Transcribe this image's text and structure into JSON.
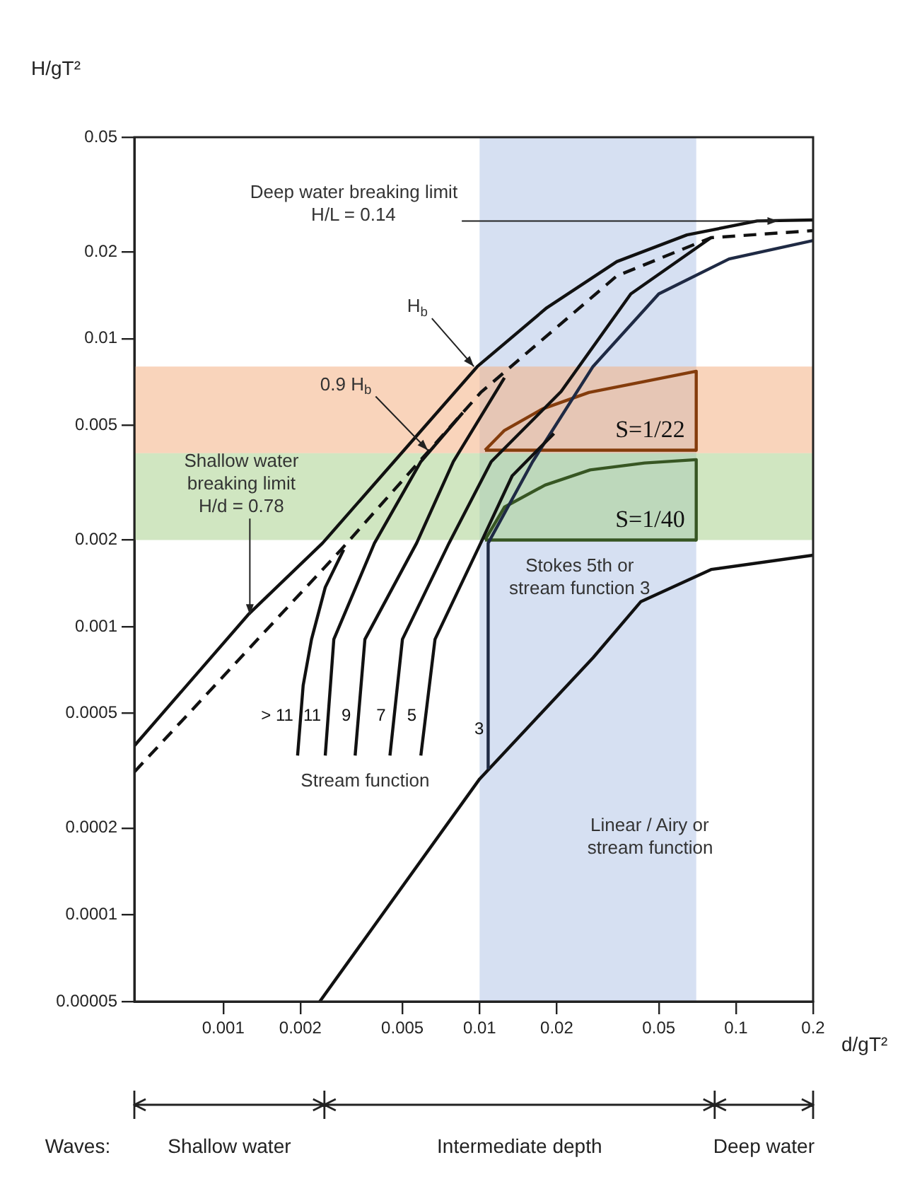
{
  "chart_data": {
    "type": "line",
    "xlabel": "d/gT²",
    "ylabel": "H/gT²",
    "log": "xy",
    "xlim": [
      0.00045,
      0.2
    ],
    "ylim": [
      5e-05,
      0.05
    ],
    "xticks": [
      0.001,
      0.002,
      0.005,
      0.01,
      0.02,
      0.05,
      0.1,
      0.2
    ],
    "yticks": [
      {
        "value": 5e-05,
        "label": "0.00005"
      },
      0.0001,
      0.0002,
      0.0005,
      0.001,
      0.002,
      0.005,
      0.01,
      0.02,
      0.05
    ],
    "grid": false,
    "legend": false,
    "marker": "none",
    "series": [
      {
        "type": "line",
        "color": "#111111",
        "x": [
          0.00045,
          0.00125,
          0.00244,
          0.0098,
          0.0183,
          0.0343,
          0.0644,
          0.121,
          0.2
        ],
        "values": [
          0.000386,
          0.0011,
          0.00195,
          0.008,
          0.0128,
          0.0185,
          0.0229,
          0.0256,
          0.0258
        ]
      },
      {
        "type": "line",
        "color": "#111111",
        "line_style": "dashed",
        "x": [
          0.00045,
          0.00288,
          0.0101,
          0.0343,
          0.08,
          0.2
        ],
        "values": [
          0.000313,
          0.00185,
          0.0065,
          0.0165,
          0.0224,
          0.0237
        ]
      },
      {
        "type": "line",
        "name": "> 11",
        "color": "#111111",
        "x": [
          0.00195,
          0.00205,
          0.00221,
          0.0025,
          0.00295
        ],
        "values": [
          0.000357,
          0.000625,
          0.000904,
          0.00137,
          0.00185
        ]
      },
      {
        "type": "line",
        "name": "11",
        "color": "#111111",
        "x": [
          0.0025,
          0.0027,
          0.00389,
          0.0059,
          0.0086
        ],
        "values": [
          0.000357,
          0.000904,
          0.00195,
          0.00374,
          0.00553
        ]
      },
      {
        "type": "line",
        "name": "9",
        "color": "#111111",
        "x": [
          0.00327,
          0.00357,
          0.00568,
          0.0079,
          0.0125
        ],
        "values": [
          0.000357,
          0.000904,
          0.00195,
          0.00374,
          0.00731
        ]
      },
      {
        "type": "line",
        "name": "7",
        "color": "#111111",
        "x": [
          0.00447,
          0.005,
          0.0076,
          0.0111,
          0.0208,
          0.0389,
          0.08
        ],
        "values": [
          0.000357,
          0.000904,
          0.00195,
          0.00374,
          0.00655,
          0.0143,
          0.0224
        ]
      },
      {
        "type": "line",
        "name": "5",
        "color": "#111111",
        "x": [
          0.0059,
          0.0067,
          0.0101,
          0.0134,
          0.0195
        ],
        "values": [
          0.000357,
          0.000904,
          0.00195,
          0.00334,
          0.00468
        ]
      },
      {
        "type": "line",
        "name": "3",
        "color": "#1f2a44",
        "x": [
          0.0108,
          0.0108,
          0.0161,
          0.0277,
          0.05,
          0.094,
          0.2
        ],
        "values": [
          0.00032,
          0.00195,
          0.00374,
          0.008,
          0.0143,
          0.0189,
          0.0219
        ]
      },
      {
        "type": "line",
        "color": "#111111",
        "x": [
          0.00238,
          0.01,
          0.0277,
          0.0425,
          0.08,
          0.2
        ],
        "values": [
          5e-05,
          0.000296,
          0.00078,
          0.00122,
          0.00158,
          0.00177
        ]
      },
      {
        "type": "line",
        "name": "S=1/22",
        "color": "#843c0c",
        "x": [
          0.0105,
          0.0125,
          0.0176,
          0.0267,
          0.044,
          0.07,
          0.07
        ],
        "values": [
          0.0041,
          0.0048,
          0.0057,
          0.0065,
          0.0071,
          0.0077,
          0.0041
        ]
      },
      {
        "type": "line",
        "color": "#843c0c",
        "x": [
          0.0105,
          0.07
        ],
        "values": [
          0.0041,
          0.0041
        ]
      },
      {
        "type": "line",
        "name": "S=1/40",
        "color": "#375623",
        "x": [
          0.0105,
          0.0125,
          0.018,
          0.027,
          0.044,
          0.07,
          0.07
        ],
        "values": [
          0.002,
          0.0026,
          0.0031,
          0.0035,
          0.0037,
          0.0038,
          0.002
        ]
      },
      {
        "type": "line",
        "color": "#375623",
        "x": [
          0.0105,
          0.07
        ],
        "values": [
          0.002,
          0.002
        ]
      }
    ],
    "bands": [
      {
        "axis": "x",
        "from": 0.01,
        "to": 0.07,
        "color": "#b4c7e7"
      },
      {
        "axis": "y",
        "from": 0.004,
        "to": 0.008,
        "color": "#f4b183"
      },
      {
        "axis": "y",
        "from": 0.002,
        "to": 0.004,
        "color": "#a9d18e"
      }
    ],
    "annotations": [
      {
        "text": "Deep water breaking limit\nH/L = 0.14",
        "x": 0.146,
        "y": 0.0256
      },
      {
        "text": "H$_{b}$",
        "x": 0.0095,
        "y": 0.008
      },
      {
        "text": "0.9 H$_{b}$",
        "x": 0.00628,
        "y": 0.0041
      },
      {
        "text": "Shallow water\nbreaking limit\nH/d = 0.78",
        "x": 0.00127,
        "y": 0.0011
      },
      "Stream function",
      "Linear / Airy or\nstream function",
      "Stokes 5th or\nstream function 3",
      "Waves:",
      "Shallow water",
      "Intermediate depth",
      "Deep water"
    ]
  }
}
